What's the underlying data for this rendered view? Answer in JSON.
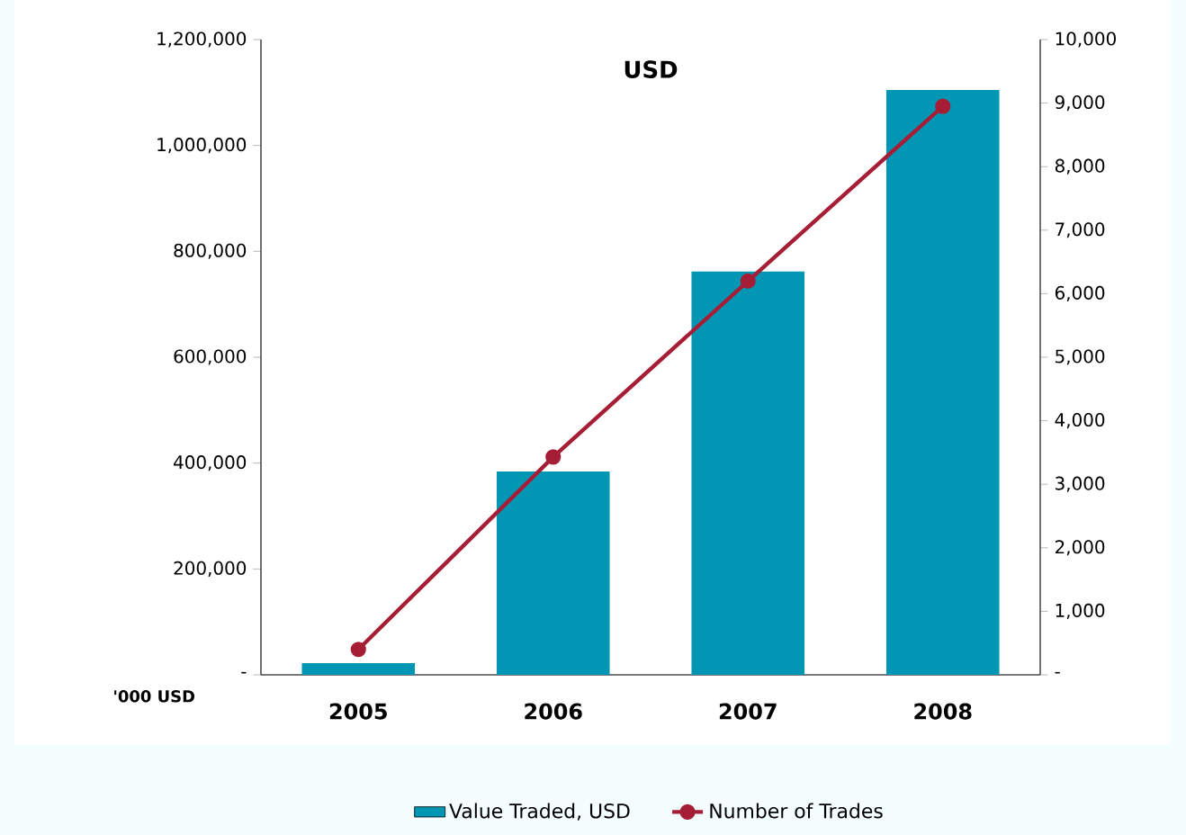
{
  "chart_data": {
    "type": "bar",
    "title": "USD",
    "categories": [
      "2005",
      "2006",
      "2007",
      "2008"
    ],
    "series": [
      {
        "name": "Value Traded, USD",
        "color": "#0096b4",
        "values": [
          22000,
          384000,
          762000,
          1105000
        ]
      },
      {
        "name": "Number of Trades",
        "type": "line",
        "axis": "y2",
        "color": "#a51e36",
        "marker": "circle",
        "values": [
          400,
          3430,
          6200,
          8950
        ]
      }
    ],
    "ylim": [
      0,
      1200000
    ],
    "yticks": [
      {
        "value": 0,
        "label": "-"
      },
      {
        "value": 200000,
        "label": "200,000"
      },
      {
        "value": 400000,
        "label": "400,000"
      },
      {
        "value": 600000,
        "label": "600,000"
      },
      {
        "value": 800000,
        "label": "800,000"
      },
      {
        "value": 1000000,
        "label": "1,000,000"
      },
      {
        "value": 1200000,
        "label": "1,200,000"
      }
    ],
    "y2lim": [
      0,
      10000
    ],
    "y2ticks": [
      {
        "value": 0,
        "label": "-"
      },
      {
        "value": 1000,
        "label": "1,000"
      },
      {
        "value": 2000,
        "label": "2,000"
      },
      {
        "value": 3000,
        "label": "3,000"
      },
      {
        "value": 4000,
        "label": "4,000"
      },
      {
        "value": 5000,
        "label": "5,000"
      },
      {
        "value": 6000,
        "label": "6,000"
      },
      {
        "value": 7000,
        "label": "7,000"
      },
      {
        "value": 8000,
        "label": "8,000"
      },
      {
        "value": 9000,
        "label": "9,000"
      },
      {
        "value": 10000,
        "label": "10,000"
      }
    ],
    "annotations": [
      "'000 USD"
    ],
    "legend": "bottom"
  }
}
